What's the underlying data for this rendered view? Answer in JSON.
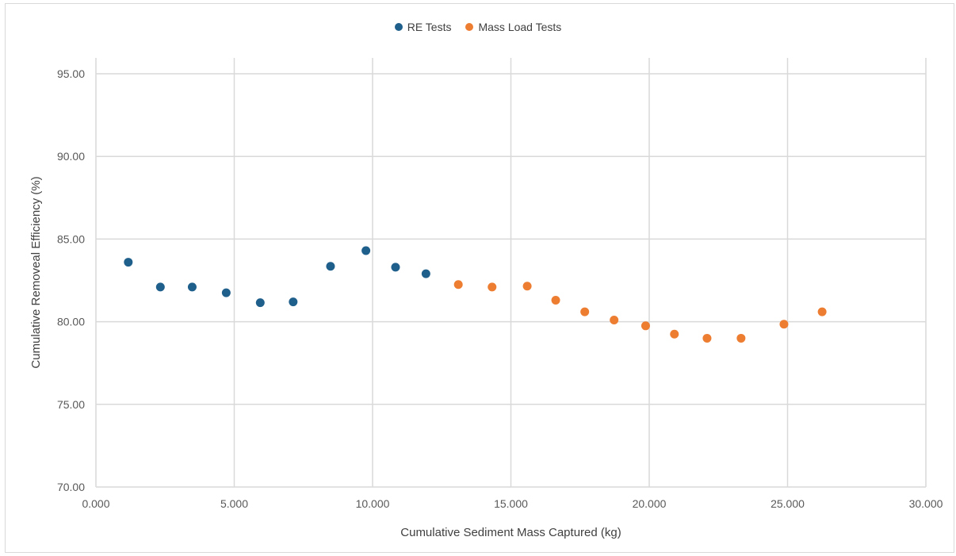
{
  "chart_data": {
    "type": "scatter",
    "title": "",
    "xlabel": "Cumulative Sediment Mass Captured (kg)",
    "ylabel": "Cumulative Removeal Efficiency (%)",
    "xlim": [
      0,
      30
    ],
    "ylim": [
      70,
      95
    ],
    "xticks": [
      0,
      5,
      10,
      15,
      20,
      25,
      30
    ],
    "yticks": [
      70,
      75,
      80,
      85,
      90,
      95
    ],
    "xtick_labels": [
      "0.000",
      "5.000",
      "10.000",
      "15.000",
      "20.000",
      "25.000",
      "30.000"
    ],
    "ytick_labels": [
      "70.00",
      "75.00",
      "80.00",
      "85.00",
      "90.00",
      "95.00"
    ],
    "grid": true,
    "legend_position": "top-center",
    "series": [
      {
        "name": "RE Tests",
        "color": "#1f5f8b",
        "points": [
          {
            "x": 1.17,
            "y": 83.6
          },
          {
            "x": 2.33,
            "y": 82.1
          },
          {
            "x": 3.48,
            "y": 82.1
          },
          {
            "x": 4.71,
            "y": 81.75
          },
          {
            "x": 5.94,
            "y": 81.15
          },
          {
            "x": 7.13,
            "y": 81.2
          },
          {
            "x": 8.48,
            "y": 83.35
          },
          {
            "x": 9.76,
            "y": 84.3
          },
          {
            "x": 10.83,
            "y": 83.3
          },
          {
            "x": 11.93,
            "y": 82.9
          }
        ]
      },
      {
        "name": "Mass Load Tests",
        "color": "#ed7d31",
        "points": [
          {
            "x": 13.1,
            "y": 82.25
          },
          {
            "x": 14.32,
            "y": 82.1
          },
          {
            "x": 15.59,
            "y": 82.15
          },
          {
            "x": 16.62,
            "y": 81.3
          },
          {
            "x": 17.67,
            "y": 80.6
          },
          {
            "x": 18.73,
            "y": 80.1
          },
          {
            "x": 19.87,
            "y": 79.75
          },
          {
            "x": 20.91,
            "y": 79.25
          },
          {
            "x": 22.09,
            "y": 79.0
          },
          {
            "x": 23.32,
            "y": 79.0
          },
          {
            "x": 24.87,
            "y": 79.85
          },
          {
            "x": 26.25,
            "y": 80.6
          }
        ]
      }
    ]
  }
}
